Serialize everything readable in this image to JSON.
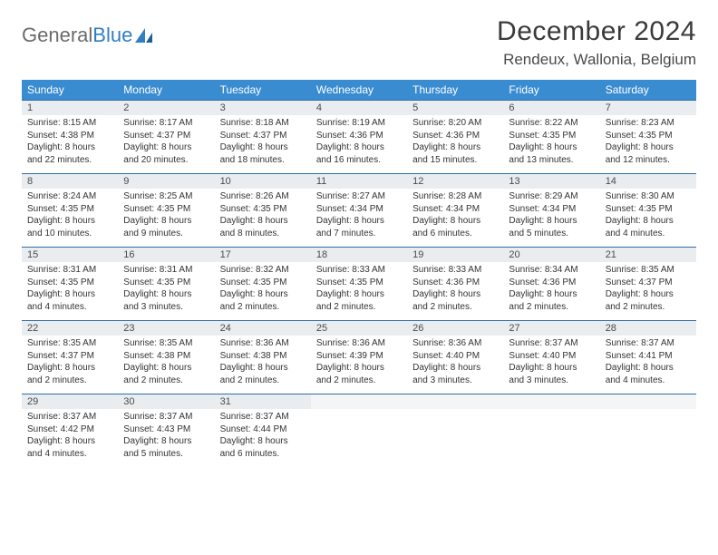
{
  "logo": {
    "word1": "General",
    "word2": "Blue"
  },
  "title": "December 2024",
  "location": "Rendeux, Wallonia, Belgium",
  "colors": {
    "header_bg": "#3a8cd1",
    "header_text": "#ffffff",
    "daynum_bg": "#e9edf0",
    "rule": "#2f6fa8",
    "logo_gray": "#6b6b6b",
    "logo_blue": "#2f7fc2"
  },
  "weekdays": [
    "Sunday",
    "Monday",
    "Tuesday",
    "Wednesday",
    "Thursday",
    "Friday",
    "Saturday"
  ],
  "days": [
    {
      "n": "1",
      "sr": "Sunrise: 8:15 AM",
      "ss": "Sunset: 4:38 PM",
      "d1": "Daylight: 8 hours",
      "d2": "and 22 minutes."
    },
    {
      "n": "2",
      "sr": "Sunrise: 8:17 AM",
      "ss": "Sunset: 4:37 PM",
      "d1": "Daylight: 8 hours",
      "d2": "and 20 minutes."
    },
    {
      "n": "3",
      "sr": "Sunrise: 8:18 AM",
      "ss": "Sunset: 4:37 PM",
      "d1": "Daylight: 8 hours",
      "d2": "and 18 minutes."
    },
    {
      "n": "4",
      "sr": "Sunrise: 8:19 AM",
      "ss": "Sunset: 4:36 PM",
      "d1": "Daylight: 8 hours",
      "d2": "and 16 minutes."
    },
    {
      "n": "5",
      "sr": "Sunrise: 8:20 AM",
      "ss": "Sunset: 4:36 PM",
      "d1": "Daylight: 8 hours",
      "d2": "and 15 minutes."
    },
    {
      "n": "6",
      "sr": "Sunrise: 8:22 AM",
      "ss": "Sunset: 4:35 PM",
      "d1": "Daylight: 8 hours",
      "d2": "and 13 minutes."
    },
    {
      "n": "7",
      "sr": "Sunrise: 8:23 AM",
      "ss": "Sunset: 4:35 PM",
      "d1": "Daylight: 8 hours",
      "d2": "and 12 minutes."
    },
    {
      "n": "8",
      "sr": "Sunrise: 8:24 AM",
      "ss": "Sunset: 4:35 PM",
      "d1": "Daylight: 8 hours",
      "d2": "and 10 minutes."
    },
    {
      "n": "9",
      "sr": "Sunrise: 8:25 AM",
      "ss": "Sunset: 4:35 PM",
      "d1": "Daylight: 8 hours",
      "d2": "and 9 minutes."
    },
    {
      "n": "10",
      "sr": "Sunrise: 8:26 AM",
      "ss": "Sunset: 4:35 PM",
      "d1": "Daylight: 8 hours",
      "d2": "and 8 minutes."
    },
    {
      "n": "11",
      "sr": "Sunrise: 8:27 AM",
      "ss": "Sunset: 4:34 PM",
      "d1": "Daylight: 8 hours",
      "d2": "and 7 minutes."
    },
    {
      "n": "12",
      "sr": "Sunrise: 8:28 AM",
      "ss": "Sunset: 4:34 PM",
      "d1": "Daylight: 8 hours",
      "d2": "and 6 minutes."
    },
    {
      "n": "13",
      "sr": "Sunrise: 8:29 AM",
      "ss": "Sunset: 4:34 PM",
      "d1": "Daylight: 8 hours",
      "d2": "and 5 minutes."
    },
    {
      "n": "14",
      "sr": "Sunrise: 8:30 AM",
      "ss": "Sunset: 4:35 PM",
      "d1": "Daylight: 8 hours",
      "d2": "and 4 minutes."
    },
    {
      "n": "15",
      "sr": "Sunrise: 8:31 AM",
      "ss": "Sunset: 4:35 PM",
      "d1": "Daylight: 8 hours",
      "d2": "and 4 minutes."
    },
    {
      "n": "16",
      "sr": "Sunrise: 8:31 AM",
      "ss": "Sunset: 4:35 PM",
      "d1": "Daylight: 8 hours",
      "d2": "and 3 minutes."
    },
    {
      "n": "17",
      "sr": "Sunrise: 8:32 AM",
      "ss": "Sunset: 4:35 PM",
      "d1": "Daylight: 8 hours",
      "d2": "and 2 minutes."
    },
    {
      "n": "18",
      "sr": "Sunrise: 8:33 AM",
      "ss": "Sunset: 4:35 PM",
      "d1": "Daylight: 8 hours",
      "d2": "and 2 minutes."
    },
    {
      "n": "19",
      "sr": "Sunrise: 8:33 AM",
      "ss": "Sunset: 4:36 PM",
      "d1": "Daylight: 8 hours",
      "d2": "and 2 minutes."
    },
    {
      "n": "20",
      "sr": "Sunrise: 8:34 AM",
      "ss": "Sunset: 4:36 PM",
      "d1": "Daylight: 8 hours",
      "d2": "and 2 minutes."
    },
    {
      "n": "21",
      "sr": "Sunrise: 8:35 AM",
      "ss": "Sunset: 4:37 PM",
      "d1": "Daylight: 8 hours",
      "d2": "and 2 minutes."
    },
    {
      "n": "22",
      "sr": "Sunrise: 8:35 AM",
      "ss": "Sunset: 4:37 PM",
      "d1": "Daylight: 8 hours",
      "d2": "and 2 minutes."
    },
    {
      "n": "23",
      "sr": "Sunrise: 8:35 AM",
      "ss": "Sunset: 4:38 PM",
      "d1": "Daylight: 8 hours",
      "d2": "and 2 minutes."
    },
    {
      "n": "24",
      "sr": "Sunrise: 8:36 AM",
      "ss": "Sunset: 4:38 PM",
      "d1": "Daylight: 8 hours",
      "d2": "and 2 minutes."
    },
    {
      "n": "25",
      "sr": "Sunrise: 8:36 AM",
      "ss": "Sunset: 4:39 PM",
      "d1": "Daylight: 8 hours",
      "d2": "and 2 minutes."
    },
    {
      "n": "26",
      "sr": "Sunrise: 8:36 AM",
      "ss": "Sunset: 4:40 PM",
      "d1": "Daylight: 8 hours",
      "d2": "and 3 minutes."
    },
    {
      "n": "27",
      "sr": "Sunrise: 8:37 AM",
      "ss": "Sunset: 4:40 PM",
      "d1": "Daylight: 8 hours",
      "d2": "and 3 minutes."
    },
    {
      "n": "28",
      "sr": "Sunrise: 8:37 AM",
      "ss": "Sunset: 4:41 PM",
      "d1": "Daylight: 8 hours",
      "d2": "and 4 minutes."
    },
    {
      "n": "29",
      "sr": "Sunrise: 8:37 AM",
      "ss": "Sunset: 4:42 PM",
      "d1": "Daylight: 8 hours",
      "d2": "and 4 minutes."
    },
    {
      "n": "30",
      "sr": "Sunrise: 8:37 AM",
      "ss": "Sunset: 4:43 PM",
      "d1": "Daylight: 8 hours",
      "d2": "and 5 minutes."
    },
    {
      "n": "31",
      "sr": "Sunrise: 8:37 AM",
      "ss": "Sunset: 4:44 PM",
      "d1": "Daylight: 8 hours",
      "d2": "and 6 minutes."
    }
  ]
}
